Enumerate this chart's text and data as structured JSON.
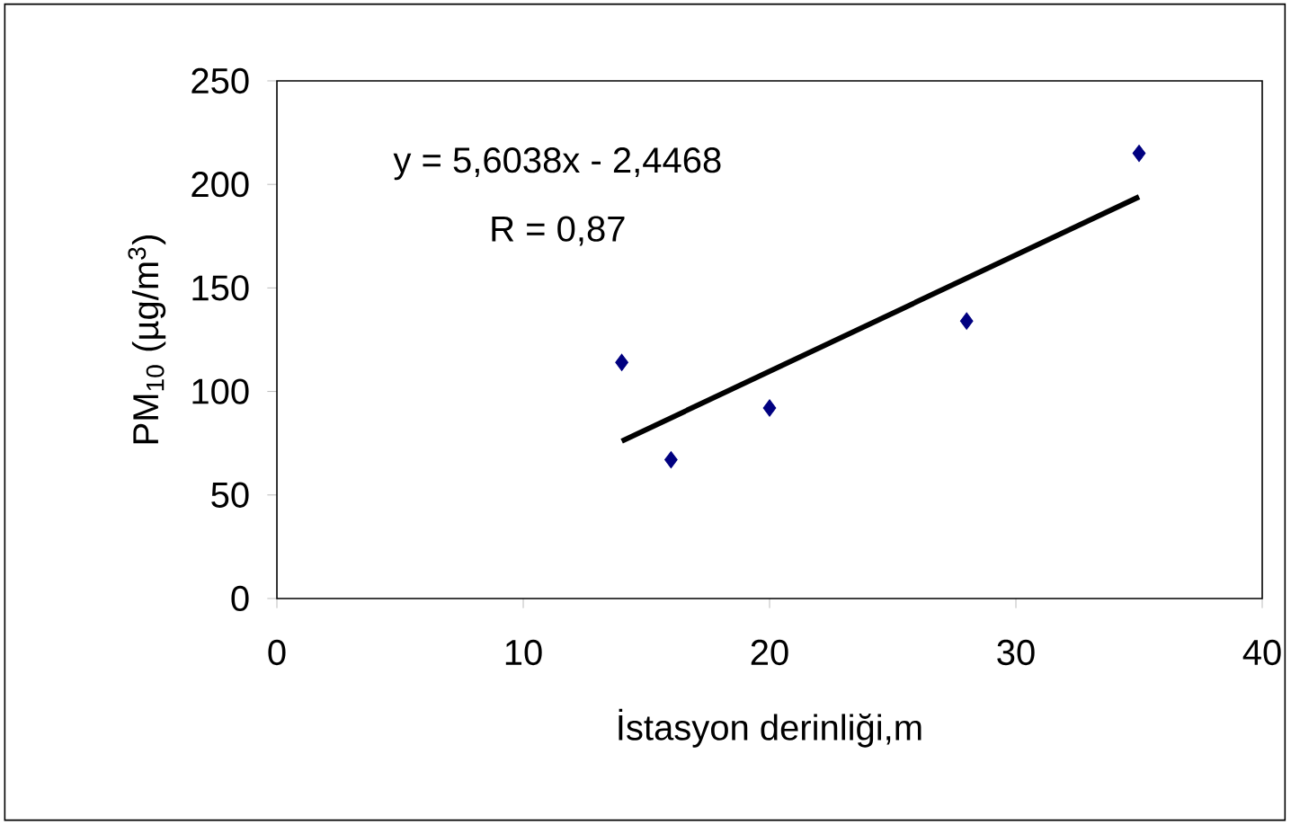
{
  "chart_data": {
    "type": "scatter",
    "xlabel": "İstasyon derinliği,m",
    "ylabel": "PM$_{10}$ (µg/m$^{3}$)",
    "x": [
      14,
      16,
      20,
      28,
      35
    ],
    "series": [
      {
        "color": "#000080",
        "marker": "diamond",
        "values": [
          114,
          67,
          92,
          134,
          215
        ]
      },
      {
        "type": "line",
        "color": "#000000",
        "marker": "none",
        "line_style": "solid",
        "x": [
          14,
          35
        ],
        "values": [
          76,
          194
        ]
      }
    ],
    "annotations": [
      "y = 5,6038x - 2,4468",
      "R = 0,87"
    ],
    "xlim": [
      0,
      40
    ],
    "xticks": [
      0,
      10,
      20,
      30,
      40
    ],
    "ylim": [
      0,
      250
    ],
    "yticks": [
      0,
      50,
      100,
      150,
      200,
      250
    ]
  }
}
